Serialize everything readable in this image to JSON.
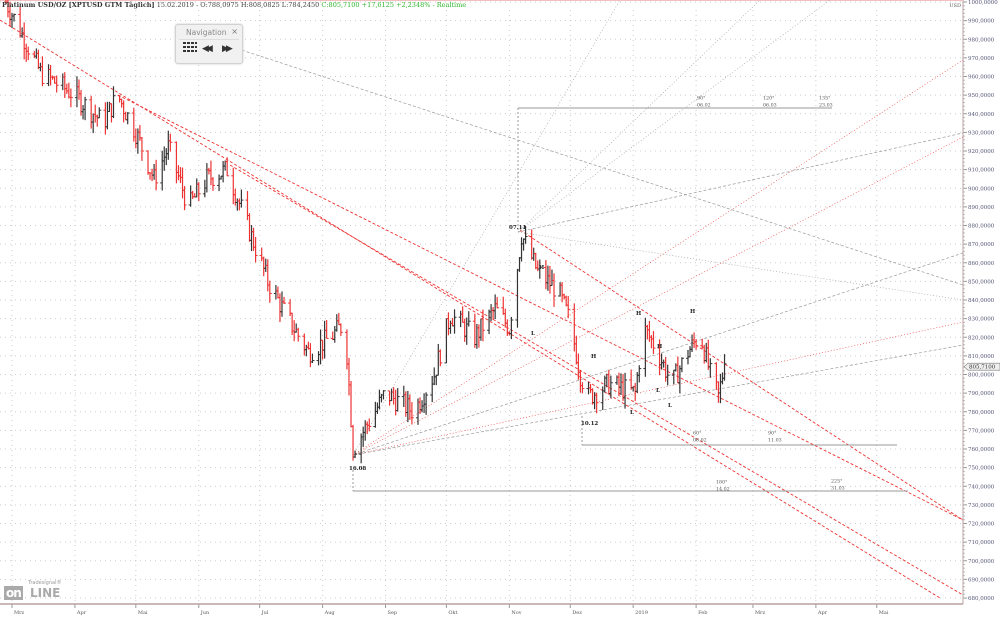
{
  "header": {
    "instrument": "Platinum USD/OZ [XPTUSD GTM Täglich]",
    "quote": "15.02.2019 - O:788,0975 H:808,0825 L:784,2450",
    "change": "C:805,7100 +17,6125 +2,2348% - Realtime"
  },
  "navigation": {
    "title": "Navigation",
    "close": "×",
    "grid_icon": "grid-icon",
    "back_icon": "rewind-icon",
    "forward_icon": "fast-forward-icon",
    "back": "◀◀",
    "forward": "▶▶"
  },
  "logo": {
    "small": "Tradesignal®",
    "main": "on",
    "rest": "LINE"
  },
  "colors": {
    "up": "#333333",
    "down": "#ee3333",
    "red_lines": "#ee3333",
    "gray_lines": "#999999"
  },
  "chart_data": {
    "type": "ohlc",
    "title": "Platinum USD/OZ [XPTUSD GTM Täglich]",
    "y_unit": "USD",
    "ylim": [
      680,
      1000
    ],
    "y_ticks": [
      "1000,0000",
      "990,0000",
      "980,0000",
      "970,0000",
      "960,0000",
      "950,0000",
      "940,0000",
      "930,0000",
      "920,0000",
      "910,0000",
      "900,0000",
      "890,0000",
      "880,0000",
      "870,0000",
      "860,0000",
      "850,0000",
      "840,0000",
      "830,0000",
      "820,0000",
      "810,0000",
      "800,0000",
      "790,0000",
      "780,0000",
      "770,0000",
      "760,0000",
      "750,0000",
      "740,0000",
      "730,0000",
      "720,0000",
      "710,0000",
      "700,0000",
      "690,0000",
      "680,0000"
    ],
    "x_ticks": [
      "Mrz",
      "Apr",
      "Mai",
      "Jun",
      "Jul",
      "Aug",
      "Sep",
      "Okt",
      "Nov",
      "Dez",
      "2019",
      "Feb",
      "Mrz",
      "Apr",
      "Mai"
    ],
    "last_price": "805,7100",
    "grid": true,
    "closes_approx": [
      [
        "2018-02-26",
        1000
      ],
      [
        "2018-03-05",
        985
      ],
      [
        "2018-03-15",
        962
      ],
      [
        "2018-04-01",
        950
      ],
      [
        "2018-04-15",
        935
      ],
      [
        "2018-04-22",
        950
      ],
      [
        "2018-05-01",
        930
      ],
      [
        "2018-05-10",
        905
      ],
      [
        "2018-05-17",
        922
      ],
      [
        "2018-05-27",
        890
      ],
      [
        "2018-06-05",
        905
      ],
      [
        "2018-06-15",
        910
      ],
      [
        "2018-06-25",
        880
      ],
      [
        "2018-07-05",
        850
      ],
      [
        "2018-07-15",
        830
      ],
      [
        "2018-07-25",
        812
      ],
      [
        "2018-08-05",
        820
      ],
      [
        "2018-08-12",
        828
      ],
      [
        "2018-08-16",
        760
      ],
      [
        "2018-09-01",
        790
      ],
      [
        "2018-09-15",
        780
      ],
      [
        "2018-09-25",
        800
      ],
      [
        "2018-10-03",
        832
      ],
      [
        "2018-10-15",
        820
      ],
      [
        "2018-10-25",
        835
      ],
      [
        "2018-11-01",
        825
      ],
      [
        "2018-11-05",
        858
      ],
      [
        "2018-11-07",
        875
      ],
      [
        "2018-11-15",
        855
      ],
      [
        "2018-11-25",
        845
      ],
      [
        "2018-12-01",
        828
      ],
      [
        "2018-12-06",
        800
      ],
      [
        "2018-12-10",
        788
      ],
      [
        "2018-12-20",
        795
      ],
      [
        "2019-01-02",
        790
      ],
      [
        "2019-01-06",
        825
      ],
      [
        "2019-01-12",
        815
      ],
      [
        "2019-01-20",
        795
      ],
      [
        "2019-01-28",
        812
      ],
      [
        "2019-02-03",
        822
      ],
      [
        "2019-02-08",
        800
      ],
      [
        "2019-02-12",
        788
      ],
      [
        "2019-02-15",
        805.71
      ]
    ],
    "annotations": {
      "low1": "16.08",
      "high1": "07.11",
      "low2": "10.12",
      "H": "H",
      "L": "L",
      "a90": "90°",
      "d90": "06.02",
      "a120": "120°",
      "d120": "06.03",
      "a135": "135°",
      "d135": "23.03",
      "b60": "60°",
      "e60": "06.02",
      "b90": "90°",
      "e90": "11.03",
      "c180": "180°",
      "f180": "14.02",
      "c225": "225°",
      "f225": "31.03"
    }
  }
}
